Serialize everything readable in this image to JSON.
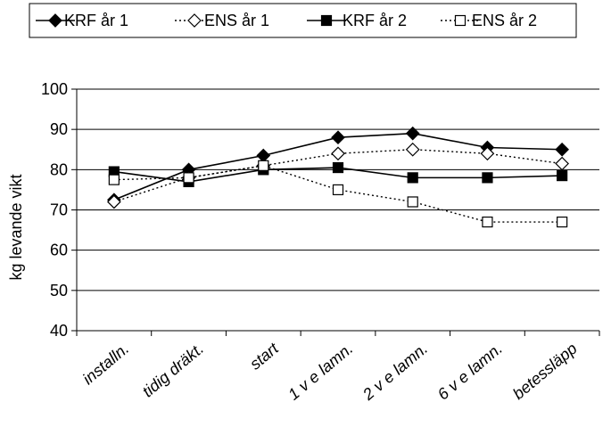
{
  "chart_data": {
    "type": "line",
    "title": "",
    "xlabel": "",
    "ylabel": "kg levande vikt",
    "ylim": [
      40,
      100
    ],
    "yticks": [
      40,
      50,
      60,
      70,
      80,
      90,
      100
    ],
    "grid": "horizontal",
    "legend_position": "top",
    "categories": [
      "installn.",
      "tidig dräkt.",
      "start",
      "1 v e lamn.",
      "2 v e lamn.",
      "6 v e lamn.",
      "betessläpp"
    ],
    "series": [
      {
        "name": "KRF år 1",
        "line": "solid",
        "marker": "diamond-filled",
        "values": [
          72.5,
          80,
          83.5,
          88,
          89,
          85.5,
          85
        ]
      },
      {
        "name": "ENS år 1",
        "line": "dotted",
        "marker": "diamond-open",
        "values": [
          72,
          78,
          81,
          84,
          85,
          84,
          81.5
        ]
      },
      {
        "name": "KRF år 2",
        "line": "solid",
        "marker": "square-filled",
        "values": [
          79.5,
          77,
          80,
          80.5,
          78,
          78,
          78.5
        ]
      },
      {
        "name": "ENS år 2",
        "line": "dotted",
        "marker": "square-open",
        "values": [
          77.5,
          78,
          81,
          75,
          72,
          67,
          67
        ]
      }
    ]
  }
}
